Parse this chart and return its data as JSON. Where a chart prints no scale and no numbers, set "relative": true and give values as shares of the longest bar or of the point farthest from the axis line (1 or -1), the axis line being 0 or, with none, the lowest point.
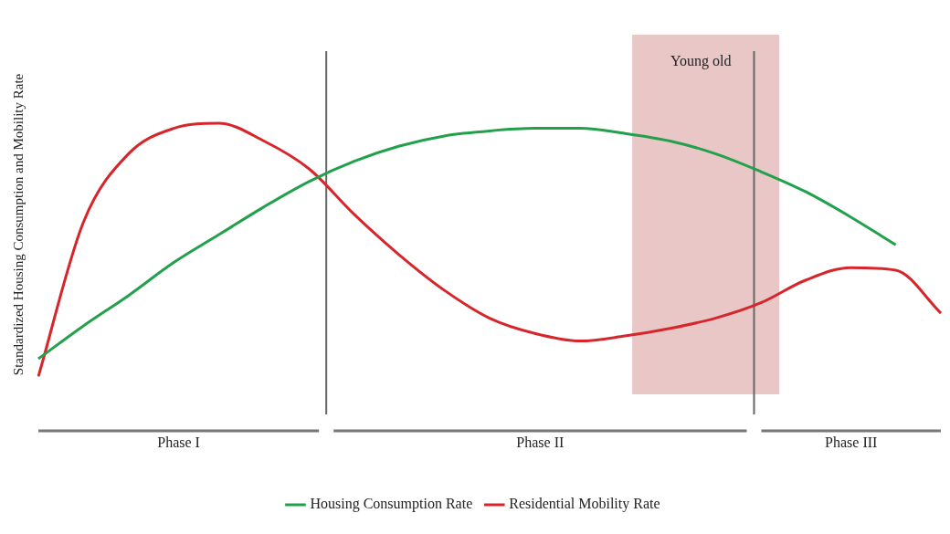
{
  "chart_data": {
    "type": "line",
    "relative": true,
    "ylabel": "Standardized Housing Consumption and Mobility Rate",
    "categories": [
      null,
      null,
      null,
      null,
      null,
      null,
      null,
      null,
      null,
      null,
      null,
      null,
      null,
      null,
      null,
      null,
      null,
      null,
      null,
      null,
      null
    ],
    "series": [
      {
        "name": "Housing Consumption Rate",
        "color": "#23a04c",
        "values": [
          0.07,
          0.2,
          0.32,
          0.45,
          0.56,
          0.67,
          0.77,
          0.85,
          0.91,
          0.95,
          0.97,
          0.98,
          0.98,
          0.96,
          0.93,
          0.88,
          0.81,
          0.73,
          0.63,
          0.52,
          null
        ]
      },
      {
        "name": "Residential Mobility Rate",
        "color": "#d7262b",
        "values": [
          0,
          0.61,
          0.88,
          0.98,
          1,
          0.93,
          0.82,
          0.64,
          0.48,
          0.34,
          0.23,
          0.17,
          0.14,
          0.16,
          0.19,
          0.23,
          0.29,
          0.38,
          0.43,
          0.42,
          0.25
        ]
      }
    ],
    "annotations": [
      "Young old",
      "Phase I",
      "Phase II",
      "Phase III"
    ],
    "grid": false,
    "legend": "bottom",
    "marker": "none",
    "line_style": "solid"
  }
}
